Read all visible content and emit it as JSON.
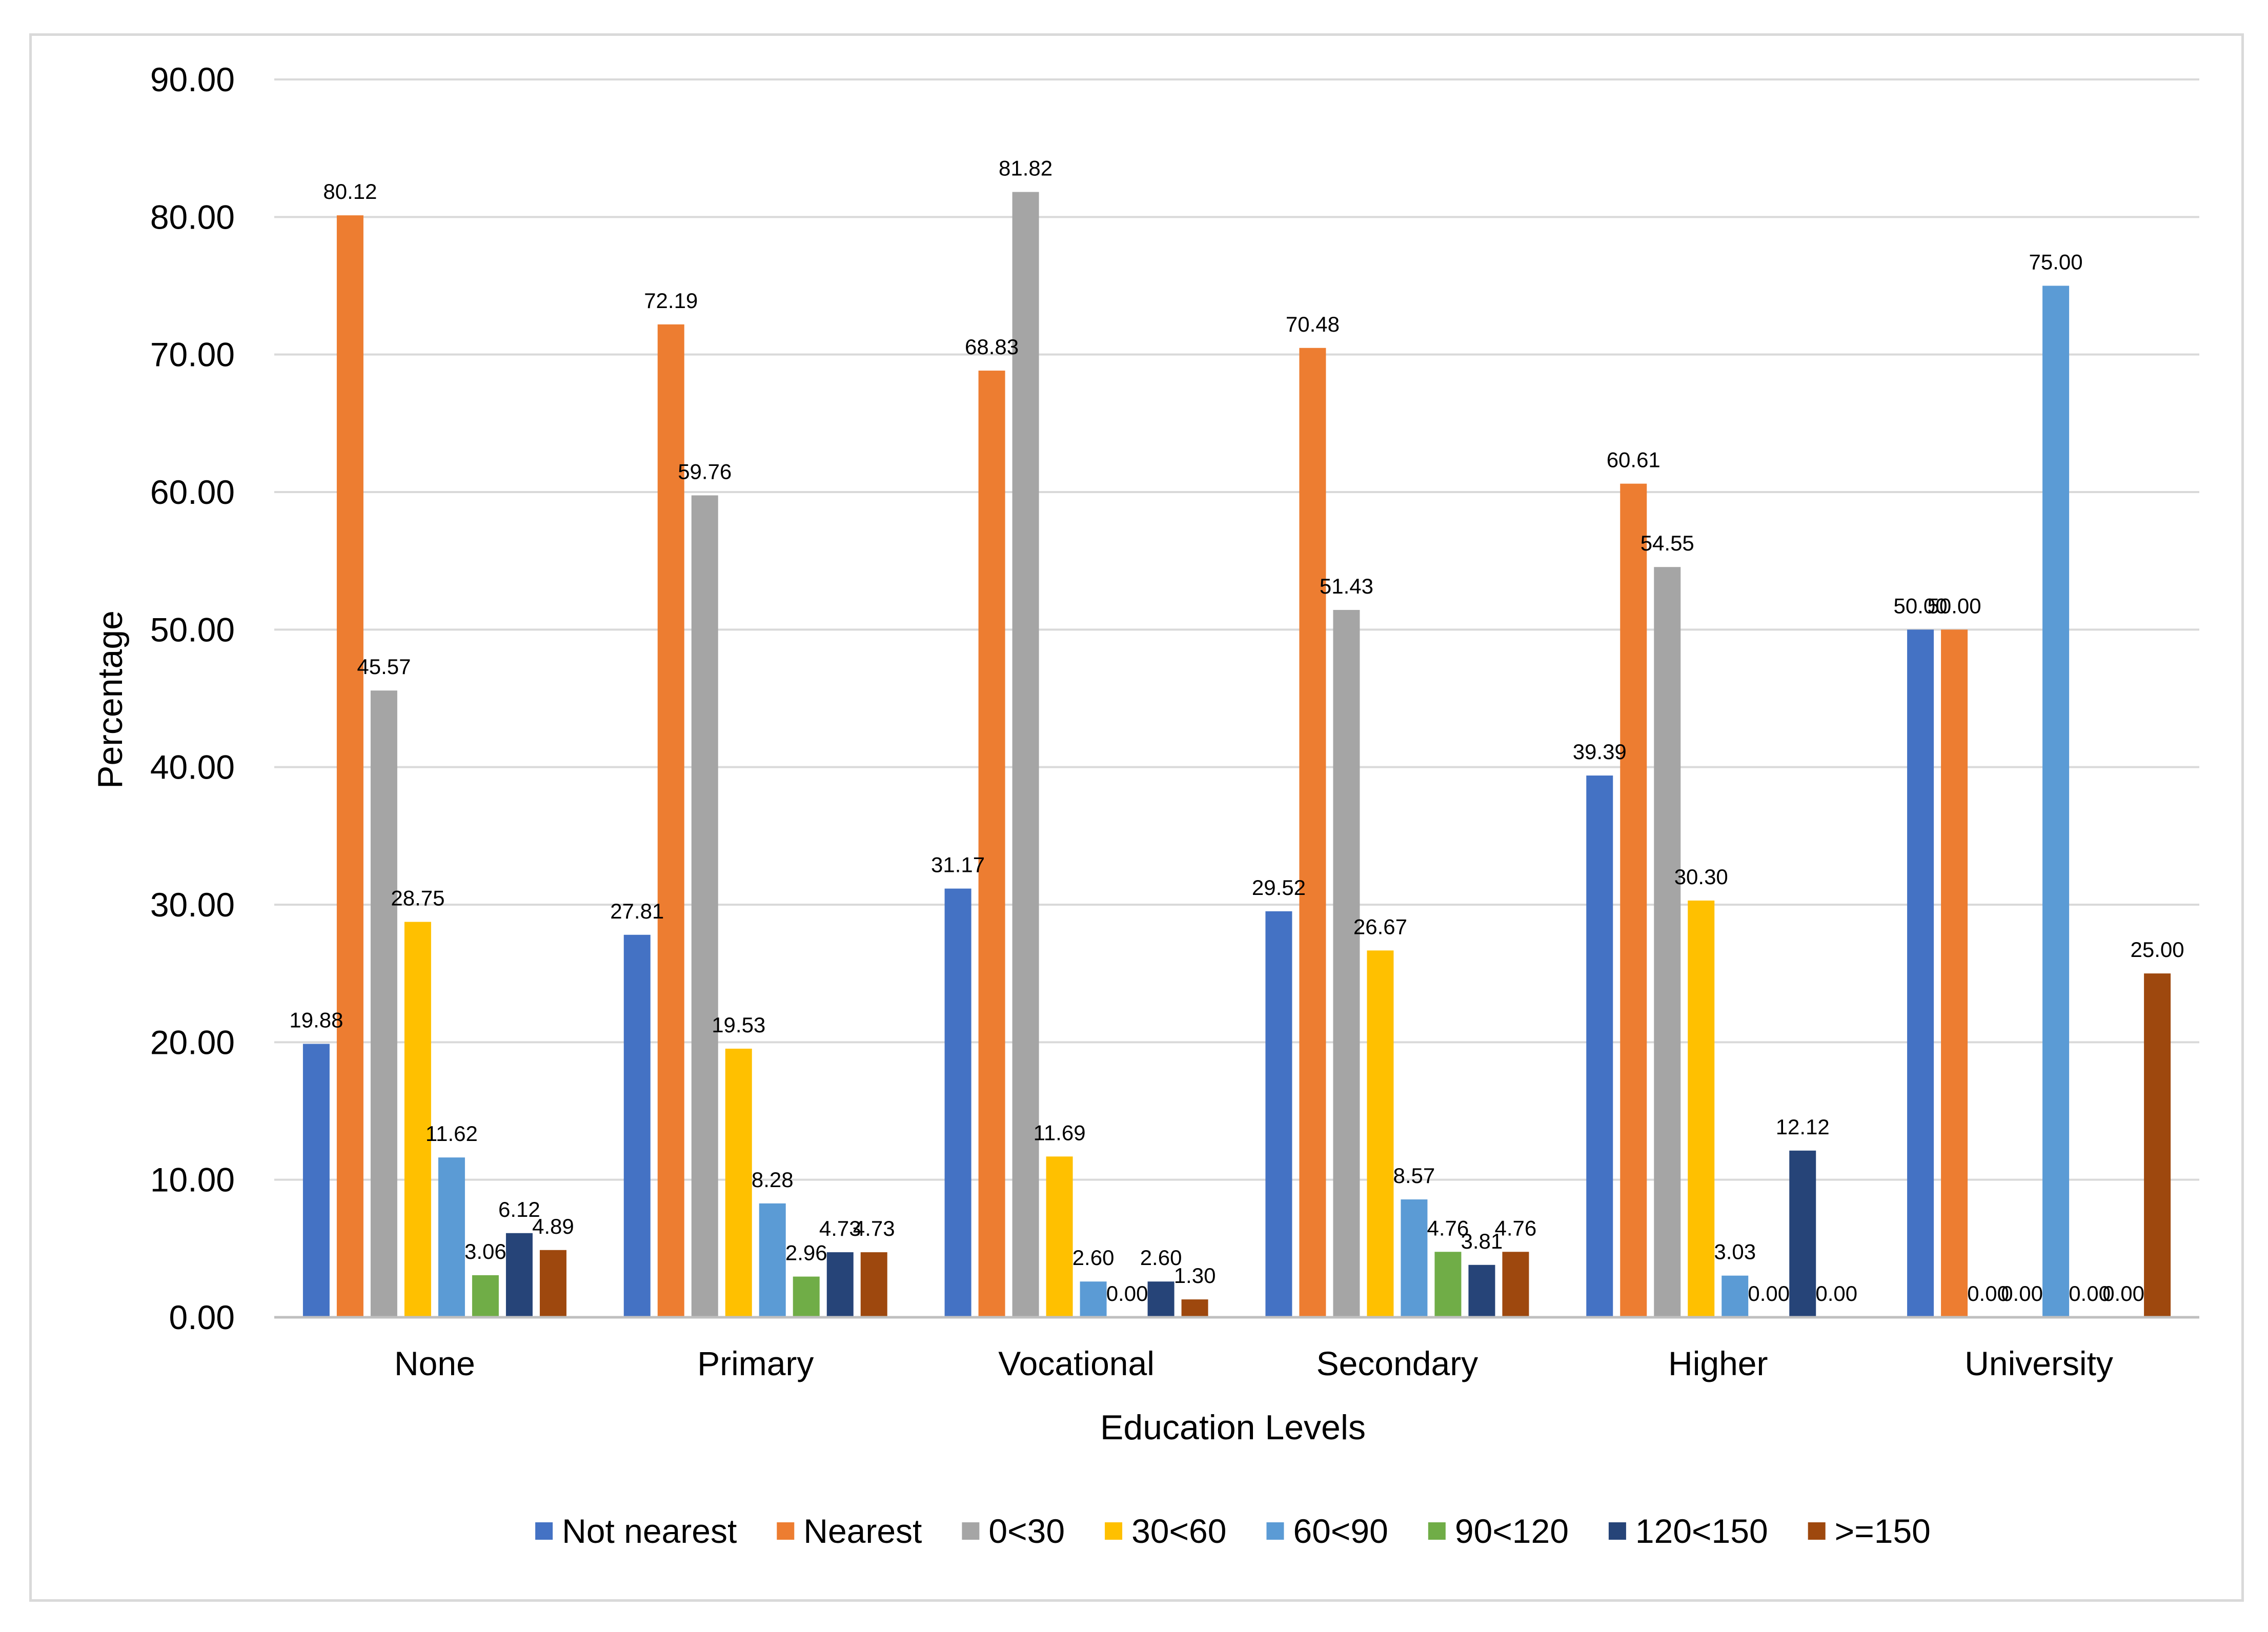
{
  "chart_data": {
    "type": "bar",
    "title": "",
    "xlabel": "Education Levels",
    "ylabel": "Percentage",
    "ylim": [
      0,
      90
    ],
    "yticks": [
      "0.00",
      "10.00",
      "20.00",
      "30.00",
      "40.00",
      "50.00",
      "60.00",
      "70.00",
      "80.00",
      "90.00"
    ],
    "grid": true,
    "legend_position": "bottom",
    "categories": [
      "None",
      "Primary",
      "Vocational",
      "Secondary",
      "Higher",
      "University"
    ],
    "series": [
      {
        "name": "Not nearest",
        "color": "#4472C4",
        "values": [
          19.88,
          27.81,
          31.17,
          29.52,
          39.39,
          50.0
        ],
        "labels": [
          "19.88",
          "27.81",
          "31.17",
          "29.52",
          "39.39",
          "50.00"
        ]
      },
      {
        "name": "Nearest",
        "color": "#ED7D31",
        "values": [
          80.12,
          72.19,
          68.83,
          70.48,
          60.61,
          50.0
        ],
        "labels": [
          "80.12",
          "72.19",
          "68.83",
          "70.48",
          "60.61",
          "50.00"
        ]
      },
      {
        "name": "0<30",
        "color": "#A5A5A5",
        "values": [
          45.57,
          59.76,
          81.82,
          51.43,
          54.55,
          0.0
        ],
        "labels": [
          "45.57",
          "59.76",
          "81.82",
          "51.43",
          "54.55",
          "0.00"
        ]
      },
      {
        "name": "30<60",
        "color": "#FFC000",
        "values": [
          28.75,
          19.53,
          11.69,
          26.67,
          30.3,
          0.0
        ],
        "labels": [
          "28.75",
          "19.53",
          "11.69",
          "26.67",
          "30.30",
          "0.00"
        ]
      },
      {
        "name": "60<90",
        "color": "#5B9BD5",
        "values": [
          11.62,
          8.28,
          2.6,
          8.57,
          3.03,
          75.0
        ],
        "labels": [
          "11.62",
          "8.28",
          "2.60",
          "8.57",
          "3.03",
          "75.00"
        ]
      },
      {
        "name": "90<120",
        "color": "#70AD47",
        "values": [
          3.06,
          2.96,
          0.0,
          4.76,
          0.0,
          0.0
        ],
        "labels": [
          "3.06",
          "2.96",
          "0.00",
          "4.76",
          "0.00",
          "0.00"
        ]
      },
      {
        "name": "120<150",
        "color": "#264478",
        "values": [
          6.12,
          4.73,
          2.6,
          3.81,
          12.12,
          0.0
        ],
        "labels": [
          "6.12",
          "4.73",
          "2.60",
          "3.81",
          "12.12",
          "0.00"
        ]
      },
      {
        "name": ">=150",
        "color": "#9E480E",
        "values": [
          4.89,
          4.73,
          1.3,
          4.76,
          0.0,
          25.0
        ],
        "labels": [
          "4.89",
          "4.73",
          "1.30",
          "4.76",
          "0.00",
          "25.00"
        ]
      }
    ]
  }
}
